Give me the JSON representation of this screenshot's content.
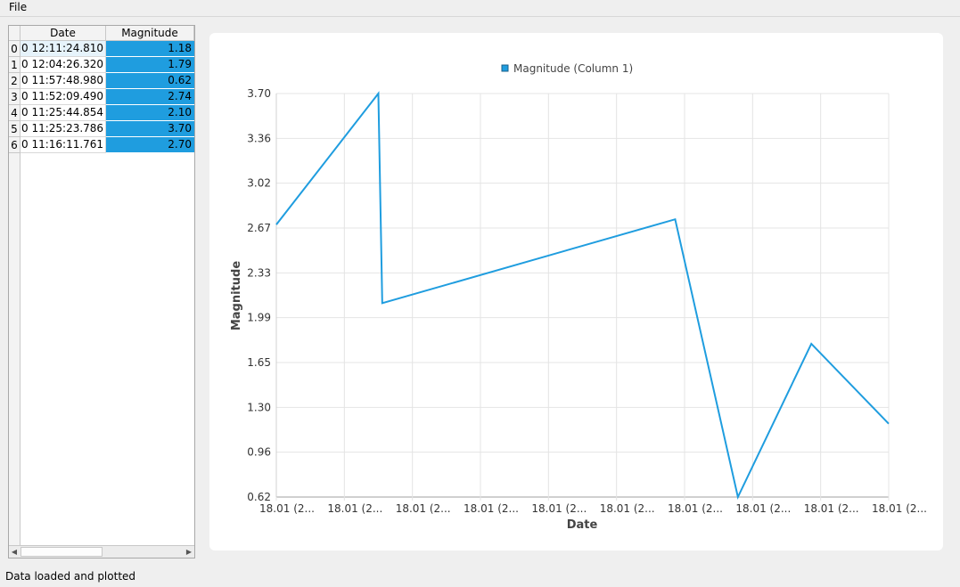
{
  "menu": {
    "file": "File"
  },
  "table": {
    "headers": [
      "Date",
      "Magnitude"
    ],
    "rows": [
      {
        "index": "0",
        "date": "0 12:11:24.810",
        "magnitude": "1.18"
      },
      {
        "index": "1",
        "date": "0 12:04:26.320",
        "magnitude": "1.79"
      },
      {
        "index": "2",
        "date": "0 11:57:48.980",
        "magnitude": "0.62"
      },
      {
        "index": "3",
        "date": "0 11:52:09.490",
        "magnitude": "2.74"
      },
      {
        "index": "4",
        "date": "0 11:25:44.854",
        "magnitude": "2.10"
      },
      {
        "index": "5",
        "date": "0 11:25:23.786",
        "magnitude": "3.70"
      },
      {
        "index": "6",
        "date": "0 11:16:11.761",
        "magnitude": "2.70"
      }
    ]
  },
  "chart_data": {
    "type": "line",
    "legend": "Magnitude (Column 1)",
    "legend_placement": "top",
    "xlabel": "Date",
    "ylabel": "Magnitude",
    "x": [
      "11:16:11.761",
      "11:25:23.786",
      "11:25:44.854",
      "11:52:09.490",
      "11:57:48.980",
      "12:04:26.320",
      "12:11:24.810"
    ],
    "y": [
      2.7,
      3.7,
      2.1,
      2.74,
      0.62,
      1.79,
      1.18
    ],
    "xlim": [
      "11:16:11.761",
      "12:11:24.810"
    ],
    "ylim": [
      0.62,
      3.7
    ],
    "yticks": [
      "0.62",
      "0.96",
      "1.30",
      "1.65",
      "1.99",
      "2.33",
      "2.67",
      "3.02",
      "3.36",
      "3.70"
    ],
    "xticks": [
      "18.01 (2...",
      "18.01 (2...",
      "18.01 (2...",
      "18.01 (2...",
      "18.01 (2...",
      "18.01 (2...",
      "18.01 (2...",
      "18.01 (2...",
      "18.01 (2...",
      "18.01 (2..."
    ],
    "grid": true,
    "color": "#1f9ddf"
  },
  "status": "Data loaded and plotted"
}
